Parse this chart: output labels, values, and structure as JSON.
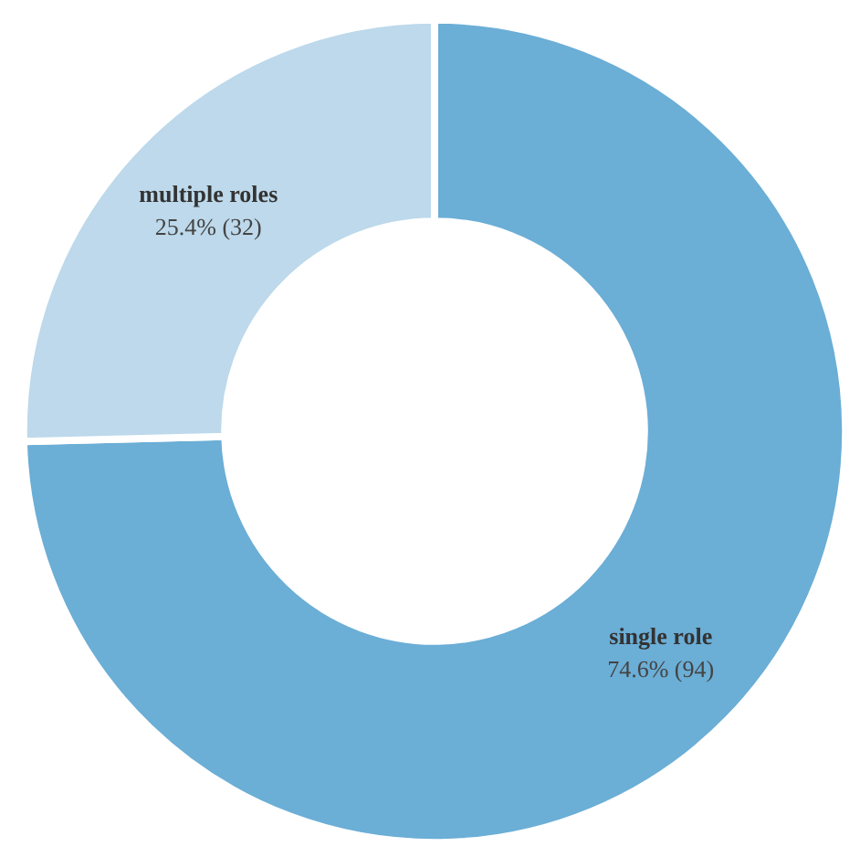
{
  "chart_data": {
    "type": "donut",
    "categories": [
      "single role",
      "multiple roles"
    ],
    "values": [
      94,
      32
    ],
    "colors": [
      "#6baed6",
      "#bdd9eb"
    ],
    "value_labels": [
      "74.6% (94)",
      "25.4% (32)"
    ]
  }
}
